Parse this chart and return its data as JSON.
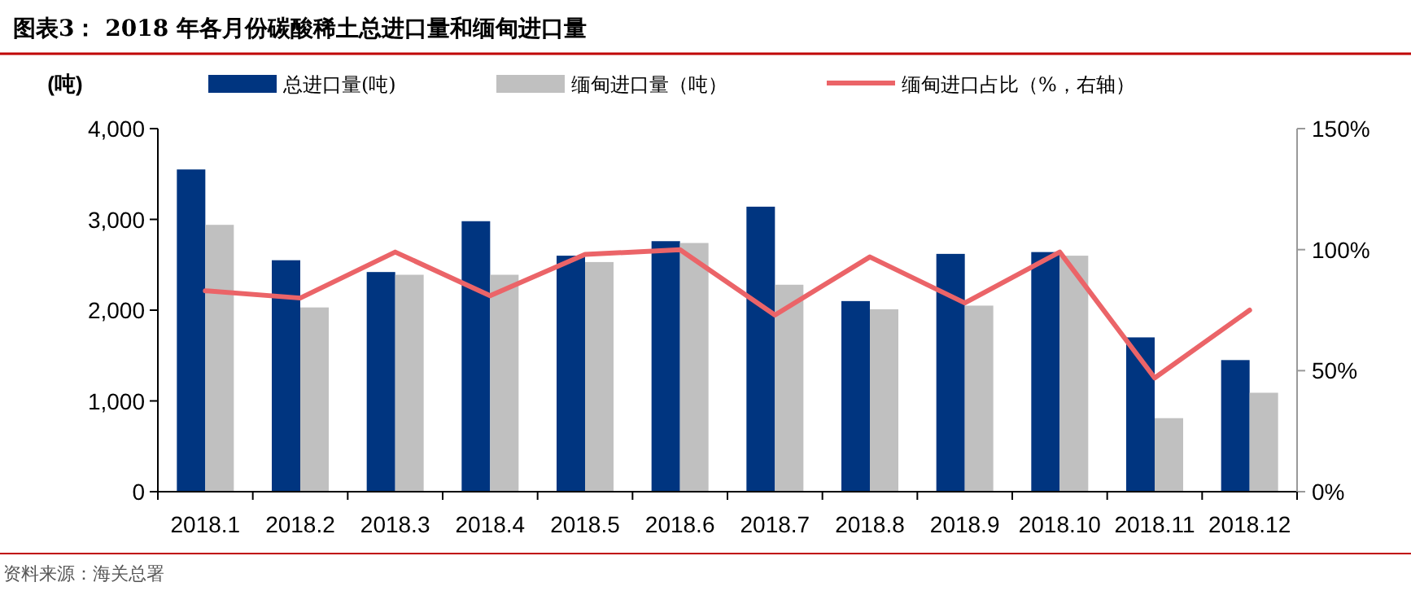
{
  "chart_data": {
    "type": "bar",
    "title": "图表3：  2018 年各月份碳酸稀土总进口量和缅甸进口量",
    "ylabel": "(吨)",
    "categories": [
      "2018.1",
      "2018.2",
      "2018.3",
      "2018.4",
      "2018.5",
      "2018.6",
      "2018.7",
      "2018.8",
      "2018.9",
      "2018.10",
      "2018.11",
      "2018.12"
    ],
    "series": [
      {
        "name": "总进口量(吨)",
        "color": "#003580",
        "values": [
          3550,
          2550,
          2420,
          2980,
          2600,
          2760,
          3140,
          2100,
          2620,
          2640,
          1700,
          1450
        ]
      },
      {
        "name": "缅甸进口量（吨）",
        "color": "#c0c0c0",
        "values": [
          2940,
          2030,
          2390,
          2390,
          2530,
          2740,
          2280,
          2010,
          2050,
          2600,
          810,
          1090
        ]
      },
      {
        "name": "缅甸进口占比（%，右轴）",
        "color": "#eb6468",
        "type": "line",
        "axis": "y2",
        "values": [
          83,
          80,
          99,
          81,
          98,
          100,
          73,
          97,
          78,
          99,
          47,
          75
        ]
      }
    ],
    "ylim": [
      0,
      4000
    ],
    "yticks": [
      0,
      {
        "value": 1000,
        "label": "1,000"
      },
      {
        "value": 2000,
        "label": "2,000"
      },
      {
        "value": 3000,
        "label": "3,000"
      },
      {
        "value": 4000,
        "label": "4,000"
      }
    ],
    "y2lim": [
      0,
      150
    ],
    "y2ticks": [
      {
        "value": 0,
        "label": "0%"
      },
      {
        "value": 50,
        "label": "50%"
      },
      {
        "value": 100,
        "label": "100%"
      },
      {
        "value": 150,
        "label": "150%"
      }
    ],
    "grid": false,
    "legend": "top",
    "marker": "none",
    "annotations": [
      "资料来源：海关总署"
    ]
  }
}
